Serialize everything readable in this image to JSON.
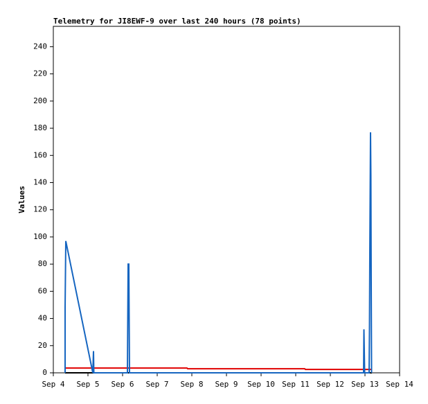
{
  "chart_data": {
    "type": "line",
    "title": "Telemetry for JI8EWF-9 over last 240 hours (78 points)",
    "y_label": "Values",
    "xlim": [
      4,
      14
    ],
    "xticks": [
      {
        "value": 4,
        "label": "Sep 4"
      },
      {
        "value": 5,
        "label": "Sep 5"
      },
      {
        "value": 6,
        "label": "Sep 6"
      },
      {
        "value": 7,
        "label": "Sep 7"
      },
      {
        "value": 8,
        "label": "Sep 8"
      },
      {
        "value": 9,
        "label": "Sep 9"
      },
      {
        "value": 10,
        "label": "Sep 10"
      },
      {
        "value": 11,
        "label": "Sep 11"
      },
      {
        "value": 12,
        "label": "Sep 12"
      },
      {
        "value": 13,
        "label": "Sep 13"
      },
      {
        "value": 14,
        "label": "Sep 14"
      }
    ],
    "ylim": [
      0,
      255
    ],
    "yticks": [
      0,
      20,
      40,
      60,
      80,
      100,
      120,
      140,
      160,
      180,
      200,
      220,
      240
    ],
    "grid": false,
    "series": [
      {
        "color": "#1565c0",
        "x": [
          4.34,
          4.34,
          4.36,
          5.1,
          5.14,
          5.16,
          5.17,
          6.14,
          6.16,
          6.18,
          6.19,
          6.2,
          12.96,
          12.97,
          12.99,
          13.12,
          13.13,
          13.14,
          13.16,
          13.17,
          13.18,
          13.19
        ],
        "values": [
          0,
          48,
          97,
          5,
          0,
          16,
          0,
          0,
          80,
          80,
          40,
          0,
          0,
          32,
          0,
          0,
          32,
          88,
          177,
          145,
          65,
          0
        ]
      },
      {
        "color": "#e00000",
        "x": [
          4.34,
          7.86,
          7.88,
          11.26,
          11.28,
          13.2
        ],
        "values": [
          3.5,
          3.5,
          3,
          3,
          2.5,
          2.5
        ]
      },
      {
        "color": "#000000",
        "x": [
          4.34,
          13.2
        ],
        "values": [
          0,
          0
        ]
      }
    ]
  }
}
